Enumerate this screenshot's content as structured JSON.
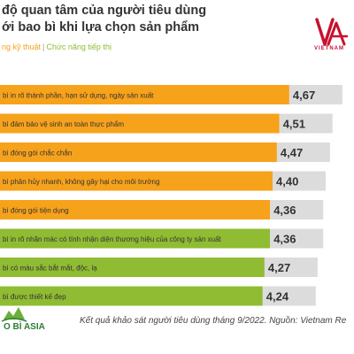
{
  "header": {
    "title_line1": "độ quan tâm của người tiêu dùng",
    "title_line2": "ới bao bì khi lựa chọn sản phẩm",
    "legend_technical": "ng kỹ thuật",
    "legend_separator": "|",
    "legend_marketing": "Chức năng tiếp thị"
  },
  "logo": {
    "text": "VIETNAM",
    "icon": "vietnam-report-logo"
  },
  "brand": {
    "text": "O BÌ ASIA",
    "icon": "bao-bi-asia-logo"
  },
  "footer": {
    "note": "Kết quả khảo sát người tiêu dùng tháng 9/2022. Nguồn: Vietnam Re"
  },
  "colors": {
    "technical": "#f7a21b",
    "marketing": "#8fbc33",
    "value_box": "#dcdcdc",
    "text": "#333333"
  },
  "chart_data": {
    "type": "bar",
    "orientation": "horizontal",
    "xlim": [
      0,
      5
    ],
    "grid": false,
    "categories": [
      "bì in rõ thành phần, hạn sử dụng, ngày sản xuất",
      "bì đảm bảo vệ sinh an toàn thực phẩm",
      "bì đóng gói chắc chắn",
      "bì phân hủy nhanh, không gây hại cho môi trường",
      "bì đóng gói tiện dụng",
      "bì in rõ nhãn mác có tính nhận diện thương hiệu của công ty sản xuất",
      "bì có màu sắc bắt mắt, độc, lạ",
      "bì được thiết kế đẹp"
    ],
    "values": [
      4.67,
      4.51,
      4.47,
      4.4,
      4.36,
      4.36,
      4.27,
      4.24
    ],
    "value_labels": [
      "4,67",
      "4,51",
      "4,47",
      "4,40",
      "4,36",
      "4,36",
      "4,27",
      "4,24"
    ],
    "groups": [
      "technical",
      "technical",
      "technical",
      "technical",
      "technical",
      "marketing",
      "marketing",
      "marketing"
    ],
    "series": [
      {
        "name": "ng kỹ thuật",
        "color": "#f7a21b"
      },
      {
        "name": "Chức năng tiếp thị",
        "color": "#8fbc33"
      }
    ]
  }
}
